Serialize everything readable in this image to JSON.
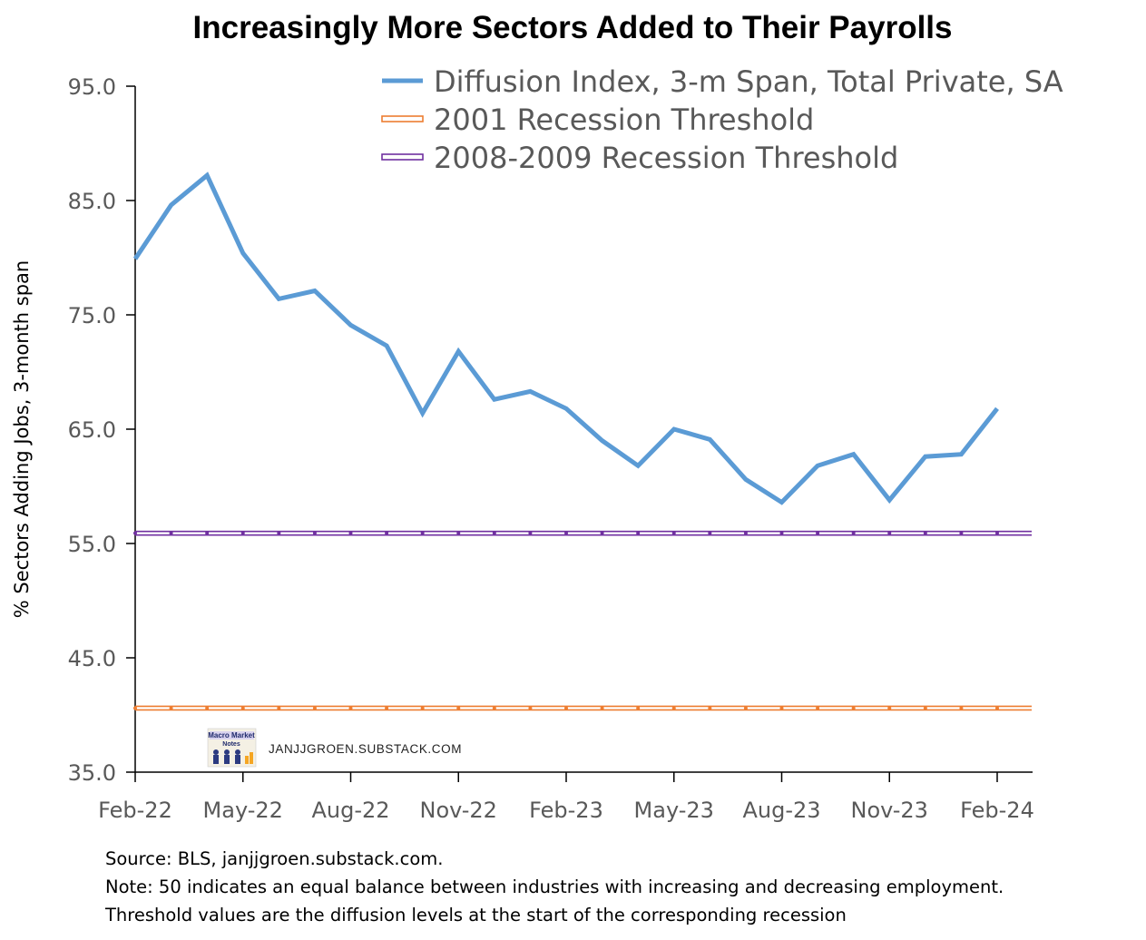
{
  "chart_data": {
    "type": "line",
    "title": "Increasingly More Sectors Added to Their Payrolls",
    "ylabel": "% Sectors Adding Jobs, 3-month span",
    "xlabel": "",
    "ylim": [
      35,
      95
    ],
    "yticks": [
      35,
      45,
      55,
      65,
      75,
      85,
      95
    ],
    "ytick_labels": [
      "35.0",
      "45.0",
      "55.0",
      "65.0",
      "75.0",
      "85.0",
      "95.0"
    ],
    "x": [
      "Feb-22",
      "Mar-22",
      "Apr-22",
      "May-22",
      "Jun-22",
      "Jul-22",
      "Aug-22",
      "Sep-22",
      "Oct-22",
      "Nov-22",
      "Dec-22",
      "Jan-23",
      "Feb-23",
      "Mar-23",
      "Apr-23",
      "May-23",
      "Jun-23",
      "Jul-23",
      "Aug-23",
      "Sep-23",
      "Oct-23",
      "Nov-23",
      "Dec-23",
      "Jan-24",
      "Feb-24"
    ],
    "xtick_labels": [
      "Feb-22",
      "May-22",
      "Aug-22",
      "Nov-22",
      "Feb-23",
      "May-23",
      "Aug-23",
      "Nov-23",
      "Feb-24"
    ],
    "series": [
      {
        "name": "Diffusion Index, 3-m Span, Total Private, SA",
        "color": "#5b9bd5",
        "values": [
          79.9,
          84.6,
          87.2,
          80.4,
          76.4,
          77.1,
          74.1,
          72.3,
          66.4,
          71.8,
          67.6,
          68.3,
          66.8,
          64.0,
          61.8,
          65.0,
          64.1,
          60.6,
          58.6,
          61.8,
          62.8,
          58.8,
          62.6,
          62.8,
          66.8
        ]
      },
      {
        "name": "2001 Recession Threshold",
        "color": "#ed7d31",
        "values": [
          40.6,
          40.6,
          40.6,
          40.6,
          40.6,
          40.6,
          40.6,
          40.6,
          40.6,
          40.6,
          40.6,
          40.6,
          40.6,
          40.6,
          40.6,
          40.6,
          40.6,
          40.6,
          40.6,
          40.6,
          40.6,
          40.6,
          40.6,
          40.6,
          40.6
        ]
      },
      {
        "name": "2008-2009 Recession Threshold",
        "color": "#7030a0",
        "values": [
          55.9,
          55.9,
          55.9,
          55.9,
          55.9,
          55.9,
          55.9,
          55.9,
          55.9,
          55.9,
          55.9,
          55.9,
          55.9,
          55.9,
          55.9,
          55.9,
          55.9,
          55.9,
          55.9,
          55.9,
          55.9,
          55.9,
          55.9,
          55.9,
          55.9
        ]
      }
    ],
    "legend_position": "top-right",
    "grid": false,
    "watermark": {
      "logo_text": "Macro Market Notes",
      "site": "JANJJGROEN.SUBSTACK.COM"
    },
    "notes": [
      "Source: BLS, janjjgroen.substack.com.",
      "Note: 50 indicates an equal balance between industries with increasing and decreasing employment.",
      "Threshold values are the diffusion levels at the start of the corresponding recession"
    ]
  }
}
